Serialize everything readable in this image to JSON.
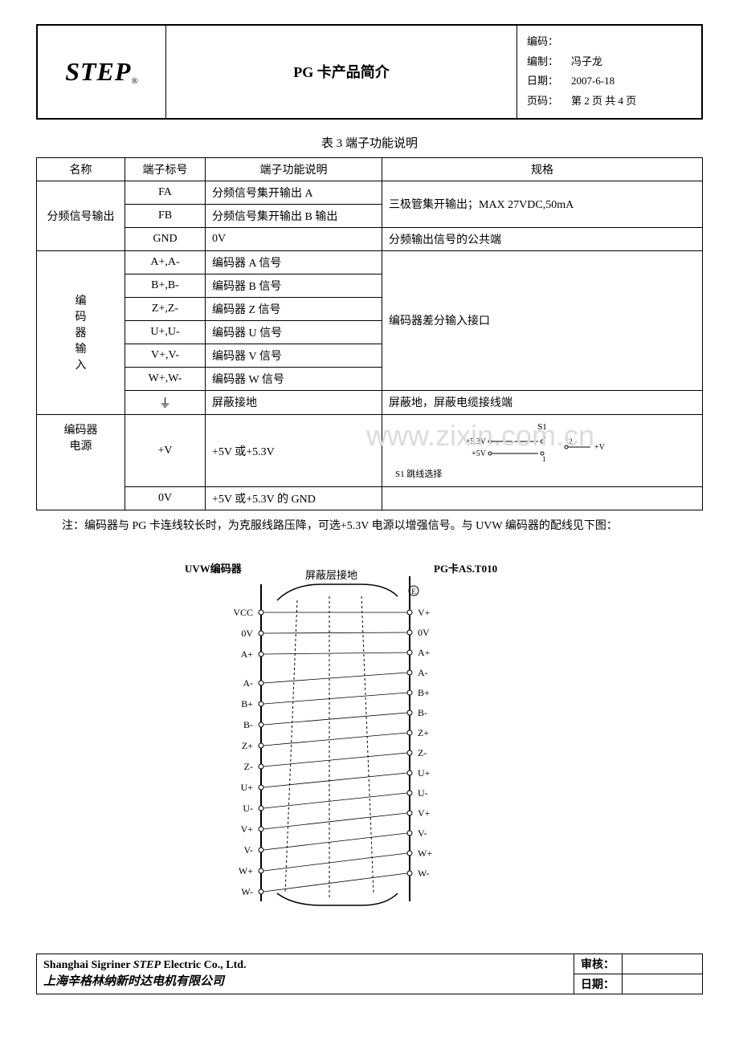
{
  "header": {
    "logo": "STEP",
    "logoReg": "®",
    "title": "PG 卡产品简介",
    "meta": {
      "codeLabel": "编码：",
      "codeValue": "",
      "authorLabel": "编制：",
      "authorValue": "冯子龙",
      "dateLabel": "日期：",
      "dateValue": "2007-6-18",
      "pageLabel": "页码：",
      "pageValue": "第 2 页 共 4 页"
    }
  },
  "tableTitle": "表 3  端子功能说明",
  "tableHeaders": [
    "名称",
    "端子标号",
    "端子功能说明",
    "规格"
  ],
  "table": {
    "group1": {
      "name": "分频信号输出",
      "rows": [
        {
          "terminal": "FA",
          "func": "分频信号集开输出 A",
          "spec": "三极管集开输出；MAX 27VDC,50mA"
        },
        {
          "terminal": "FB",
          "func": "分频信号集开输出 B 输出"
        },
        {
          "terminal": "GND",
          "func": "0V",
          "spec": "分频输出信号的公共端"
        }
      ]
    },
    "group2": {
      "name": "编码器输入",
      "specMerged": "编码器差分输入接口",
      "rows": [
        {
          "terminal": "A+,A-",
          "func": "编码器 A 信号"
        },
        {
          "terminal": "B+,B-",
          "func": "编码器 B 信号"
        },
        {
          "terminal": "Z+,Z-",
          "func": "编码器 Z 信号"
        },
        {
          "terminal": "U+,U-",
          "func": "编码器 U 信号"
        },
        {
          "terminal": "V+,V-",
          "func": "编码器 V 信号"
        },
        {
          "terminal": "W+,W-",
          "func": "编码器 W 信号"
        }
      ],
      "groundRow": {
        "terminal": "⏚",
        "func": "屏蔽接地",
        "spec": "屏蔽地，屏蔽电缆接线端"
      }
    },
    "group3": {
      "name": "编码器电源",
      "rows": [
        {
          "terminal": "+V",
          "func": "+5V 或+5.3V",
          "spec": "S1 跳线选择"
        },
        {
          "terminal": "0V",
          "func": "+5V 或+5.3V 的 GND",
          "spec": ""
        }
      ],
      "jumper": {
        "title": "S1",
        "line1": "+5.3V",
        "line2": "+5V",
        "pin1": "1",
        "pin2": "2",
        "pin3": "3",
        "out": "+V"
      }
    }
  },
  "note": "注：编码器与 PG 卡连线较长时，为克服线路压降，可选+5.3V 电源以增强信号。与 UVW 编码器的配线见下图：",
  "watermark": "www.zixin.com.cn",
  "wiring": {
    "leftTitle": "UVW编码器",
    "centerTitle": "屏蔽层接地",
    "rightTitle": "PG卡AS.T010",
    "pinsLeft": [
      "VCC",
      "0V",
      "A+",
      "A-",
      "B+",
      "B-",
      "Z+",
      "Z-",
      "U+",
      "U-",
      "V+",
      "V-",
      "W+",
      "W-"
    ],
    "pinsRight": [
      "E",
      "V+",
      "0V",
      "A+",
      "A-",
      "B+",
      "B-",
      "Z+",
      "Z-",
      "U+",
      "U-",
      "V+",
      "V-",
      "W+",
      "W-"
    ]
  },
  "footer": {
    "companyEn1": "Shanghai Sigriner ",
    "companyEnStep": "STEP",
    "companyEn2": " Electric Co., Ltd.",
    "companyCn": "上海辛格林纳新时达电机有限公司",
    "approveLabel": "审核：",
    "approveValue": "",
    "dateLabel": "日期：",
    "dateValue": ""
  }
}
